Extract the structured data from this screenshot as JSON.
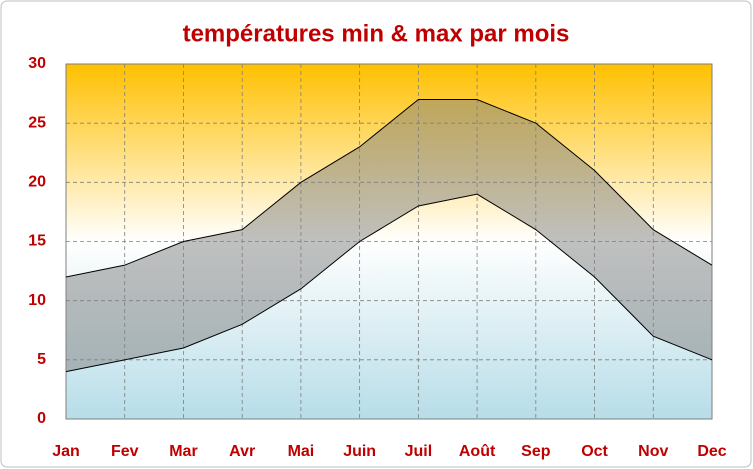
{
  "chart_data": {
    "type": "range-area",
    "title": "températures min & max par mois",
    "categories": [
      "Jan",
      "Fev",
      "Mar",
      "Avr",
      "Mai",
      "Juin",
      "Juil",
      "Août",
      "Sep",
      "Oct",
      "Nov",
      "Dec"
    ],
    "series": [
      {
        "color": "#000000",
        "values": [
          12,
          13,
          15,
          16,
          20,
          23,
          27,
          27,
          25,
          21,
          16,
          13
        ]
      },
      {
        "color": "#000000",
        "values": [
          4,
          5,
          6,
          8,
          11,
          15,
          18,
          19,
          16,
          12,
          7,
          5
        ]
      }
    ],
    "band_color": "#808080",
    "ylim": [
      0,
      30
    ],
    "yticks": [
      0,
      5,
      10,
      15,
      20,
      25,
      30
    ],
    "grid": true
  }
}
